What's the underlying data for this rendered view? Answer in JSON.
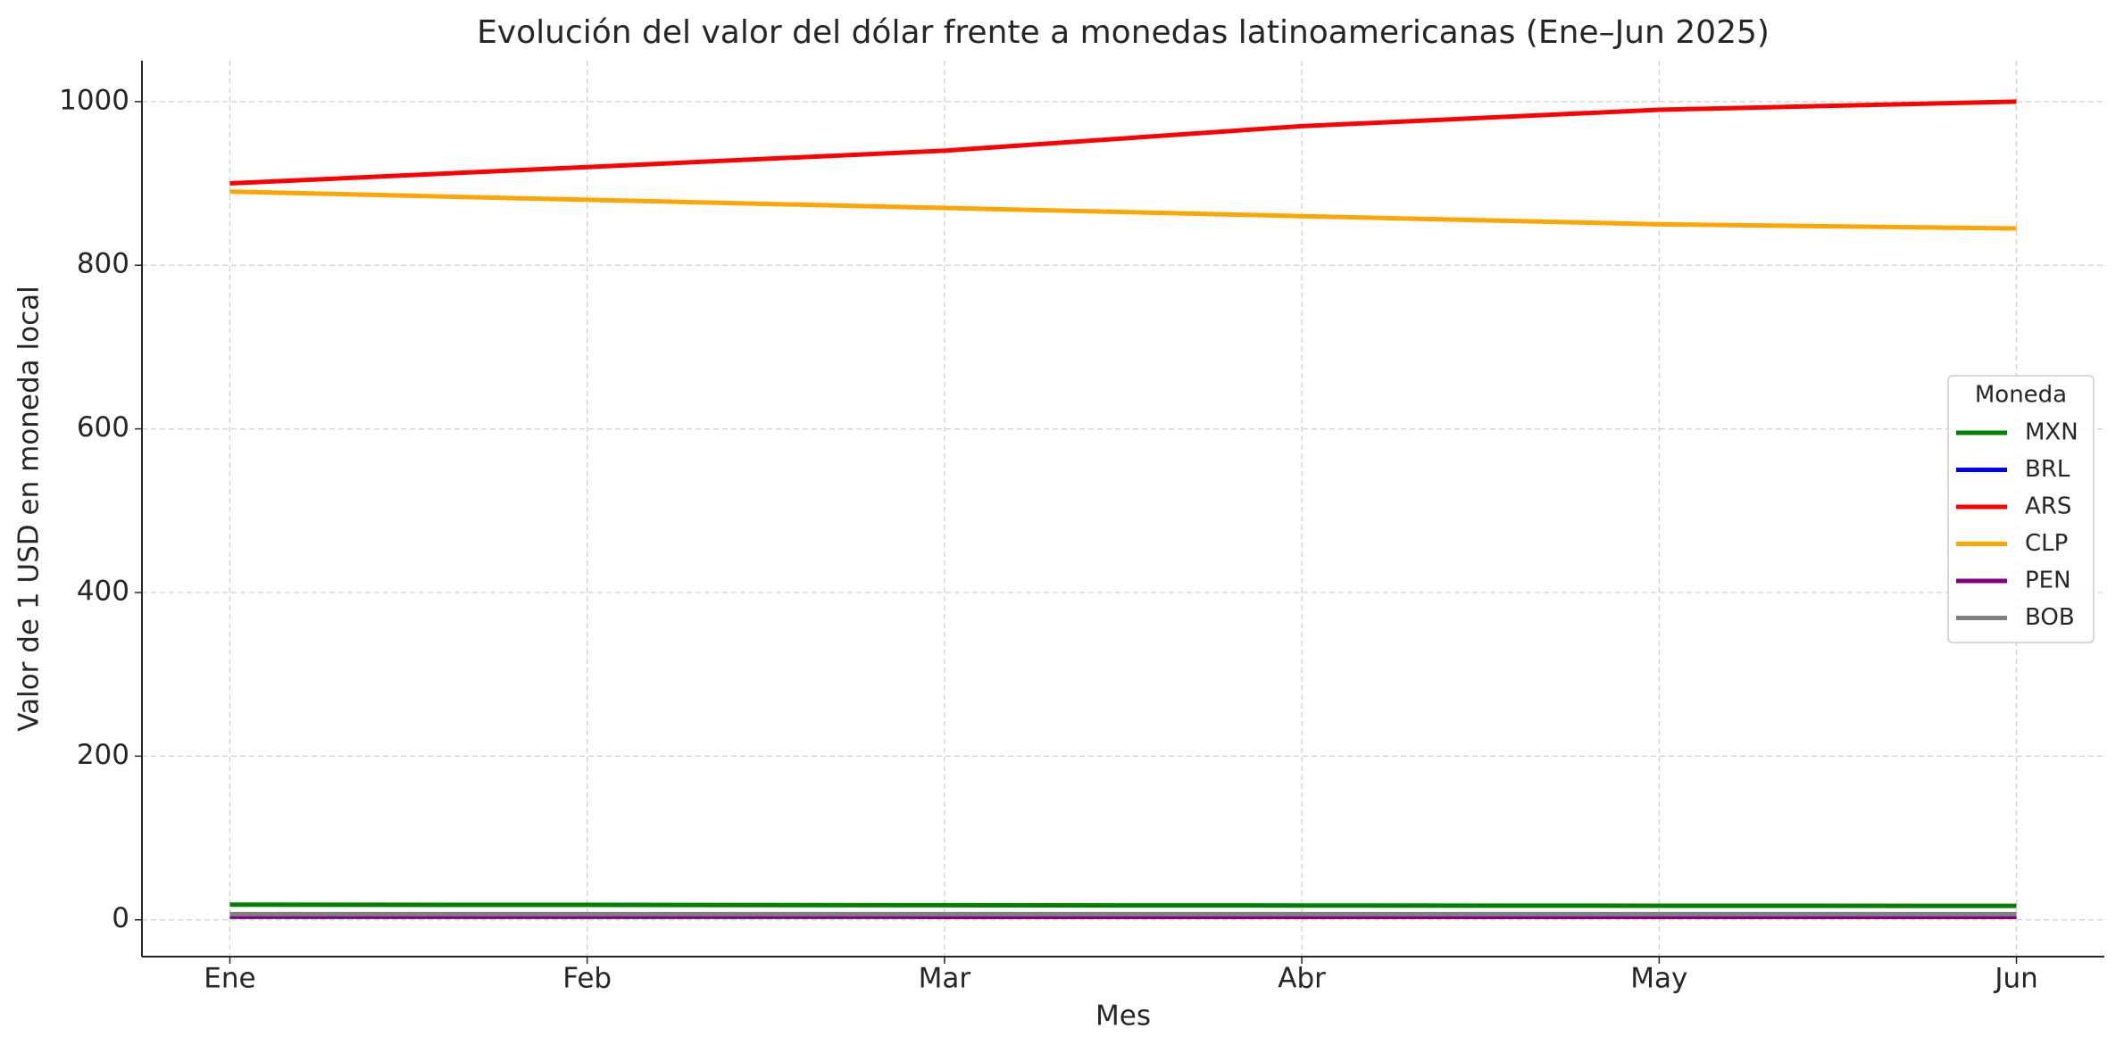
{
  "chart_data": {
    "type": "line",
    "title": "Evolución del valor del dólar frente a monedas latinoamericanas (Ene–Jun 2025)",
    "xlabel": "Mes",
    "ylabel": "Valor de 1 USD en moneda local",
    "categories": [
      "Ene",
      "Feb",
      "Mar",
      "Abr",
      "May",
      "Jun"
    ],
    "series": [
      {
        "name": "MXN",
        "color": "#008000",
        "values": [
          18.5,
          18.2,
          17.8,
          17.5,
          17.2,
          17.0
        ]
      },
      {
        "name": "BRL",
        "color": "#0000ff",
        "values": [
          5.3,
          5.2,
          5.1,
          5.0,
          4.9,
          4.8
        ]
      },
      {
        "name": "ARS",
        "color": "#ff0000",
        "values": [
          900,
          920,
          940,
          970,
          990,
          1000
        ]
      },
      {
        "name": "CLP",
        "color": "#ffa500",
        "values": [
          890,
          880,
          870,
          860,
          850,
          845
        ]
      },
      {
        "name": "PEN",
        "color": "#800080",
        "values": [
          3.7,
          3.7,
          3.6,
          3.6,
          3.5,
          3.5
        ]
      },
      {
        "name": "BOB",
        "color": "#808080",
        "values": [
          6.9,
          6.9,
          6.9,
          6.9,
          6.9,
          6.9
        ]
      }
    ],
    "ylim": [
      -45,
      1050
    ],
    "yticks": [
      0,
      200,
      400,
      600,
      800,
      1000
    ],
    "grid": true,
    "legend_title": "Moneda",
    "legend_position": "right"
  }
}
